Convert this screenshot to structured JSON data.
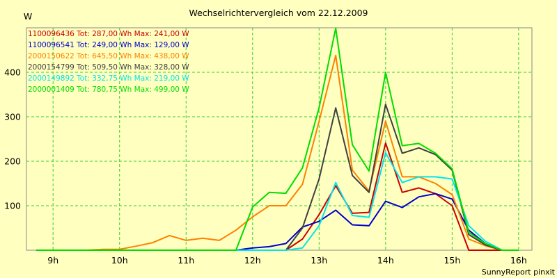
{
  "chart_data": {
    "type": "line",
    "title": "Wechselrichtervergleich vom 22.12.2009",
    "ylabel": "W",
    "xlabel": "",
    "footer": "SunnyReport pinxit",
    "x_ticks": [
      "9h",
      "10h",
      "11h",
      "12h",
      "13h",
      "14h",
      "15h",
      "16h"
    ],
    "y_ticks": [
      "100",
      "200",
      "300",
      "400"
    ],
    "xlim": [
      8.6,
      16.2
    ],
    "ylim": [
      0,
      500
    ],
    "grid": true,
    "legend_position": "top-left",
    "x": [
      8.75,
      9.0,
      9.25,
      9.5,
      9.75,
      10.0,
      10.25,
      10.5,
      10.75,
      11.0,
      11.25,
      11.5,
      11.75,
      12.0,
      12.25,
      12.5,
      12.75,
      13.0,
      13.25,
      13.5,
      13.75,
      14.0,
      14.25,
      14.5,
      14.75,
      15.0,
      15.25,
      15.5,
      15.75,
      16.0
    ],
    "series": [
      {
        "name": "1100096436",
        "legend": "1100096436 Tot: 287,00 Wh Max: 241,00 W",
        "color": "#CC0000",
        "values": [
          0,
          0,
          0,
          0,
          0,
          0,
          0,
          0,
          0,
          0,
          0,
          0,
          0,
          0,
          0,
          0,
          25,
          80,
          145,
          83,
          85,
          241,
          130,
          140,
          127,
          100,
          0,
          0,
          0,
          0
        ]
      },
      {
        "name": "1100096541",
        "legend": "1100096541 Tot: 249,00 Wh Max: 129,00 W",
        "color": "#0000CC",
        "values": [
          0,
          0,
          0,
          0,
          0,
          0,
          0,
          0,
          0,
          0,
          0,
          0,
          0,
          5,
          8,
          15,
          52,
          65,
          90,
          57,
          55,
          110,
          96,
          120,
          127,
          115,
          45,
          15,
          0,
          0
        ]
      },
      {
        "name": "2000150622",
        "legend": "2000150622 Tot: 645,50 Wh Max: 438,00 W",
        "color": "#FF8000",
        "values": [
          0,
          0,
          0,
          0,
          2,
          2,
          9,
          17,
          33,
          22,
          27,
          22,
          45,
          75,
          100,
          100,
          148,
          290,
          438,
          180,
          133,
          290,
          165,
          165,
          150,
          125,
          25,
          10,
          0,
          0
        ]
      },
      {
        "name": "2000154799",
        "legend": "2000154799 Tot: 509,50 Wh Max: 328,00 W",
        "color": "#404040",
        "values": [
          0,
          0,
          0,
          0,
          0,
          0,
          0,
          0,
          0,
          0,
          0,
          0,
          0,
          0,
          0,
          0,
          50,
          160,
          320,
          168,
          130,
          328,
          218,
          230,
          215,
          180,
          35,
          12,
          0,
          0
        ]
      },
      {
        "name": "2000149892",
        "legend": "2000149892 Tot: 332,75 Wh Max: 219,00 W",
        "color": "#00E5EE",
        "values": [
          0,
          0,
          0,
          0,
          0,
          0,
          0,
          0,
          0,
          0,
          0,
          0,
          0,
          0,
          0,
          0,
          5,
          55,
          152,
          78,
          74,
          219,
          152,
          165,
          165,
          160,
          55,
          20,
          0,
          0
        ]
      },
      {
        "name": "2000001409",
        "legend": "2000001409 Tot: 780,75 Wh Max: 499,00 W",
        "color": "#00DD00",
        "values": [
          0,
          0,
          0,
          0,
          0,
          0,
          0,
          0,
          0,
          0,
          0,
          0,
          0,
          97,
          130,
          128,
          185,
          320,
          499,
          237,
          178,
          400,
          235,
          240,
          218,
          183,
          40,
          15,
          0,
          0
        ]
      }
    ]
  }
}
